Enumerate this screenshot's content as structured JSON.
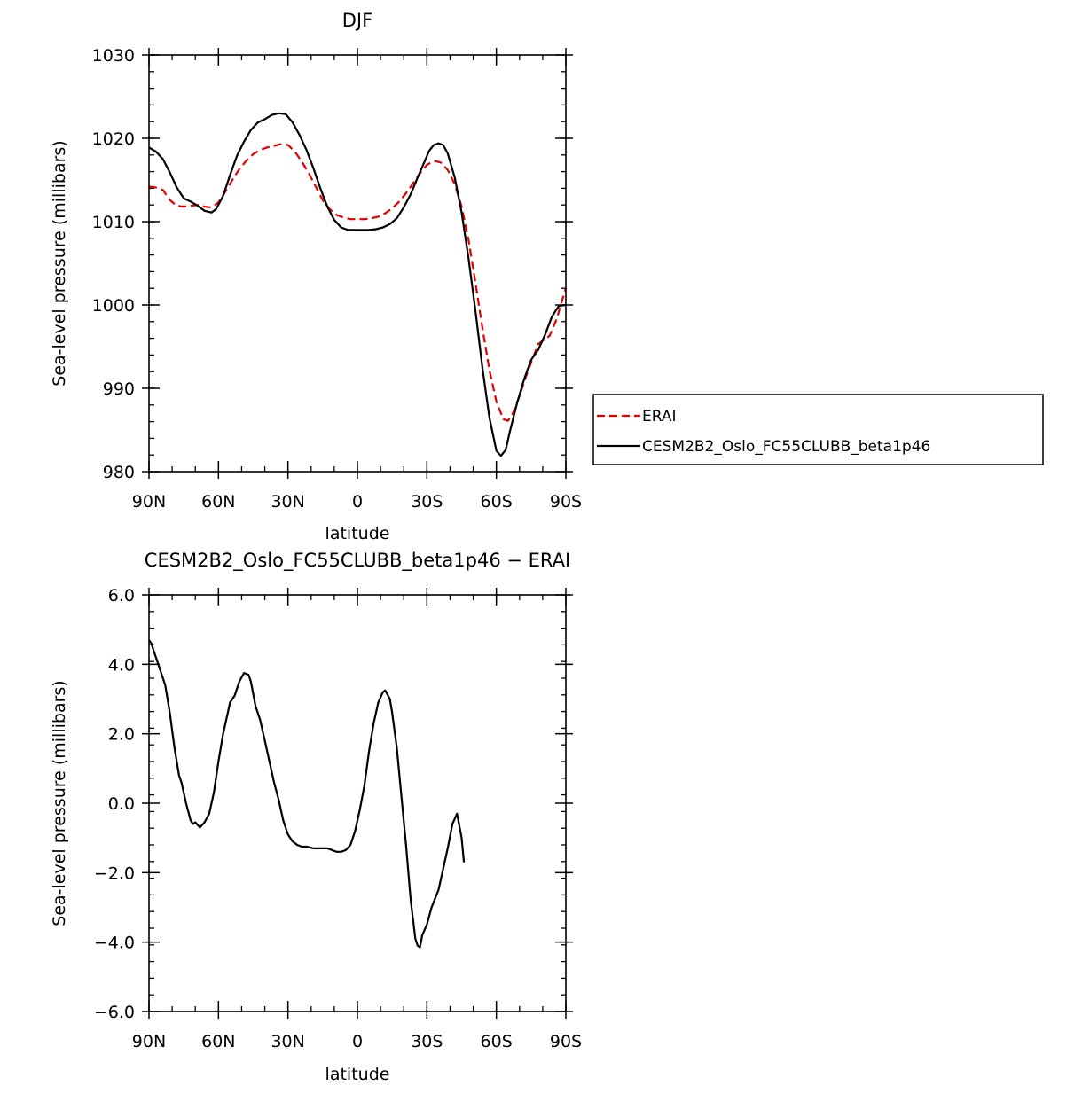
{
  "charts": [
    {
      "id": "top",
      "title": "DJF",
      "xlabel": "latitude",
      "ylabel": "Sea-level pressure (millibars)",
      "xlim": [
        90,
        -90
      ],
      "ylim": [
        980,
        1030
      ],
      "xticks": [
        {
          "value": 90,
          "label": "90N"
        },
        {
          "value": 60,
          "label": "60N"
        },
        {
          "value": 30,
          "label": "30N"
        },
        {
          "value": 0,
          "label": "0"
        },
        {
          "value": -30,
          "label": "30S"
        },
        {
          "value": -60,
          "label": "60S"
        },
        {
          "value": -90,
          "label": "90S"
        }
      ],
      "yticks": [
        {
          "value": 1030,
          "label": "1030"
        },
        {
          "value": 1020,
          "label": "1020"
        },
        {
          "value": 1010,
          "label": "1010"
        },
        {
          "value": 1000,
          "label": "1000"
        },
        {
          "value": 990,
          "label": "990"
        },
        {
          "value": 980,
          "label": "980"
        }
      ],
      "series": [
        {
          "name": "ERAI",
          "color": "#e00000",
          "dash": true,
          "points": [
            [
              90,
              1014.2
            ],
            [
              87,
              1014.1
            ],
            [
              84,
              1013.8
            ],
            [
              81,
              1012.6
            ],
            [
              78,
              1011.9
            ],
            [
              75,
              1011.8
            ],
            [
              72,
              1011.9
            ],
            [
              69,
              1012.0
            ],
            [
              66,
              1011.8
            ],
            [
              63,
              1011.7
            ],
            [
              60,
              1012.3
            ],
            [
              57,
              1013.6
            ],
            [
              54,
              1015.0
            ],
            [
              51,
              1016.3
            ],
            [
              48,
              1017.3
            ],
            [
              45,
              1018.1
            ],
            [
              42,
              1018.6
            ],
            [
              39,
              1018.9
            ],
            [
              36,
              1019.1
            ],
            [
              33,
              1019.3
            ],
            [
              30,
              1019.2
            ],
            [
              27,
              1018.4
            ],
            [
              24,
              1017.2
            ],
            [
              21,
              1015.8
            ],
            [
              18,
              1014.2
            ],
            [
              15,
              1012.6
            ],
            [
              12,
              1011.5
            ],
            [
              9,
              1010.8
            ],
            [
              6,
              1010.5
            ],
            [
              3,
              1010.3
            ],
            [
              0,
              1010.3
            ],
            [
              -3,
              1010.3
            ],
            [
              -6,
              1010.4
            ],
            [
              -9,
              1010.6
            ],
            [
              -12,
              1011.0
            ],
            [
              -15,
              1011.6
            ],
            [
              -18,
              1012.4
            ],
            [
              -21,
              1013.4
            ],
            [
              -24,
              1014.6
            ],
            [
              -27,
              1015.8
            ],
            [
              -30,
              1016.8
            ],
            [
              -33,
              1017.3
            ],
            [
              -36,
              1017.1
            ],
            [
              -39,
              1016.2
            ],
            [
              -42,
              1014.5
            ],
            [
              -45,
              1011.8
            ],
            [
              -48,
              1007.8
            ],
            [
              -51,
              1002.6
            ],
            [
              -54,
              997.2
            ],
            [
              -57,
              992.2
            ],
            [
              -60,
              988.4
            ],
            [
              -63,
              986.3
            ],
            [
              -65,
              986.1
            ],
            [
              -67,
              986.9
            ],
            [
              -70,
              989.1
            ],
            [
              -73,
              991.6
            ],
            [
              -76,
              993.8
            ],
            [
              -78,
              995.3
            ],
            [
              -80,
              995.7
            ],
            [
              -83,
              996.3
            ],
            [
              -86,
              998.3
            ],
            [
              -88,
              1000.2
            ],
            [
              -90,
              1002.0
            ]
          ]
        },
        {
          "name": "CESM2B2_Oslo_FC55CLUBB_beta1p46",
          "color": "#000000",
          "dash": false,
          "points": [
            [
              90,
              1018.9
            ],
            [
              87,
              1018.4
            ],
            [
              84,
              1017.5
            ],
            [
              81,
              1015.9
            ],
            [
              78,
              1014.1
            ],
            [
              75,
              1012.8
            ],
            [
              72,
              1012.4
            ],
            [
              69,
              1011.9
            ],
            [
              66,
              1011.3
            ],
            [
              63,
              1011.1
            ],
            [
              61,
              1011.5
            ],
            [
              58,
              1013.1
            ],
            [
              55,
              1015.6
            ],
            [
              52,
              1017.9
            ],
            [
              49,
              1019.6
            ],
            [
              46,
              1021.0
            ],
            [
              43,
              1021.9
            ],
            [
              40,
              1022.3
            ],
            [
              37,
              1022.8
            ],
            [
              34,
              1023.0
            ],
            [
              31,
              1022.9
            ],
            [
              28,
              1021.9
            ],
            [
              25,
              1020.4
            ],
            [
              22,
              1018.6
            ],
            [
              19,
              1016.4
            ],
            [
              16,
              1014.0
            ],
            [
              13,
              1011.8
            ],
            [
              10,
              1010.2
            ],
            [
              7,
              1009.3
            ],
            [
              4,
              1009.0
            ],
            [
              1,
              1009.0
            ],
            [
              -2,
              1009.0
            ],
            [
              -5,
              1009.0
            ],
            [
              -8,
              1009.1
            ],
            [
              -11,
              1009.3
            ],
            [
              -14,
              1009.7
            ],
            [
              -17,
              1010.4
            ],
            [
              -20,
              1011.7
            ],
            [
              -23,
              1013.3
            ],
            [
              -26,
              1015.3
            ],
            [
              -29,
              1017.2
            ],
            [
              -31,
              1018.5
            ],
            [
              -33,
              1019.2
            ],
            [
              -35,
              1019.4
            ],
            [
              -37,
              1019.2
            ],
            [
              -39,
              1018.2
            ],
            [
              -42,
              1015.3
            ],
            [
              -45,
              1011.1
            ],
            [
              -48,
              1005.6
            ],
            [
              -51,
              999.2
            ],
            [
              -54,
              992.4
            ],
            [
              -57,
              986.5
            ],
            [
              -60,
              982.5
            ],
            [
              -62,
              981.9
            ],
            [
              -64,
              982.6
            ],
            [
              -66,
              985.0
            ],
            [
              -69,
              988.3
            ],
            [
              -72,
              991.1
            ],
            [
              -75,
              993.4
            ],
            [
              -78,
              994.6
            ],
            [
              -81,
              996.4
            ],
            [
              -84,
              998.6
            ],
            [
              -87,
              999.9
            ],
            [
              -90,
              1000.0
            ]
          ]
        }
      ]
    },
    {
      "id": "bottom",
      "title": "CESM2B2_Oslo_FC55CLUBB_beta1p46 − ERAI",
      "xlabel": "latitude",
      "ylabel": "Sea-level pressure (millibars)",
      "xlim": [
        90,
        -90
      ],
      "ylim": [
        -6,
        6
      ],
      "xticks": [
        {
          "value": 90,
          "label": "90N"
        },
        {
          "value": 60,
          "label": "60N"
        },
        {
          "value": 30,
          "label": "30N"
        },
        {
          "value": 0,
          "label": "0"
        },
        {
          "value": -30,
          "label": "30S"
        },
        {
          "value": -60,
          "label": "60S"
        },
        {
          "value": -90,
          "label": "90S"
        }
      ],
      "yticks": [
        {
          "value": 6,
          "label": "6.0"
        },
        {
          "value": 4,
          "label": "4.0"
        },
        {
          "value": 2,
          "label": "2.0"
        },
        {
          "value": 0,
          "label": "0.0"
        },
        {
          "value": -2,
          "label": "−2.0"
        },
        {
          "value": -4,
          "label": "−4.0"
        },
        {
          "value": -6,
          "label": "−6.0"
        }
      ],
      "series": [
        {
          "name": "",
          "color": "#000000",
          "dash": false,
          "points": [
            [
              90,
              4.7
            ],
            [
              89,
              4.6
            ],
            [
              87,
              4.2
            ],
            [
              85,
              3.8
            ],
            [
              83,
              3.4
            ],
            [
              81,
              2.6
            ],
            [
              79,
              1.6
            ],
            [
              77,
              0.8
            ],
            [
              76,
              0.6
            ],
            [
              74,
              0.0
            ],
            [
              72,
              -0.5
            ],
            [
              71,
              -0.6
            ],
            [
              70,
              -0.55
            ],
            [
              68,
              -0.7
            ],
            [
              66,
              -0.55
            ],
            [
              64,
              -0.3
            ],
            [
              62,
              0.3
            ],
            [
              60,
              1.2
            ],
            [
              58,
              2.0
            ],
            [
              56,
              2.6
            ],
            [
              55,
              2.9
            ],
            [
              53,
              3.1
            ],
            [
              51,
              3.5
            ],
            [
              49,
              3.75
            ],
            [
              47,
              3.7
            ],
            [
              46,
              3.5
            ],
            [
              44,
              2.8
            ],
            [
              42,
              2.4
            ],
            [
              40,
              1.8
            ],
            [
              38,
              1.2
            ],
            [
              36,
              0.6
            ],
            [
              34,
              0.1
            ],
            [
              32,
              -0.5
            ],
            [
              30,
              -0.9
            ],
            [
              28,
              -1.1
            ],
            [
              26,
              -1.2
            ],
            [
              24,
              -1.25
            ],
            [
              22,
              -1.25
            ],
            [
              19,
              -1.3
            ],
            [
              16,
              -1.3
            ],
            [
              13,
              -1.3
            ],
            [
              11,
              -1.35
            ],
            [
              9,
              -1.4
            ],
            [
              7,
              -1.4
            ],
            [
              5,
              -1.35
            ],
            [
              3,
              -1.2
            ],
            [
              1,
              -0.8
            ],
            [
              -1,
              -0.2
            ],
            [
              -3,
              0.5
            ],
            [
              -5,
              1.5
            ],
            [
              -7,
              2.3
            ],
            [
              -9,
              2.9
            ],
            [
              -11,
              3.2
            ],
            [
              -12,
              3.25
            ],
            [
              -14,
              3.0
            ],
            [
              -15,
              2.6
            ],
            [
              -17,
              1.6
            ],
            [
              -19,
              0.2
            ],
            [
              -21,
              -1.2
            ],
            [
              -23,
              -2.8
            ],
            [
              -25,
              -3.9
            ],
            [
              -26,
              -4.1
            ],
            [
              -27,
              -4.15
            ],
            [
              -28,
              -3.8
            ],
            [
              -30,
              -3.5
            ],
            [
              -32,
              -3.0
            ],
            [
              -35,
              -2.5
            ],
            [
              -37,
              -1.9
            ],
            [
              -39,
              -1.3
            ],
            [
              -41,
              -0.6
            ],
            [
              -43,
              -0.3
            ],
            [
              -45,
              -1.0
            ],
            [
              -46,
              -1.7
            ]
          ]
        }
      ]
    }
  ],
  "legend": {
    "items": [
      {
        "label": "ERAI",
        "color": "#e00000",
        "dash": true
      },
      {
        "label": "CESM2B2_Oslo_FC55CLUBB_beta1p46",
        "color": "#000000",
        "dash": false
      }
    ]
  }
}
